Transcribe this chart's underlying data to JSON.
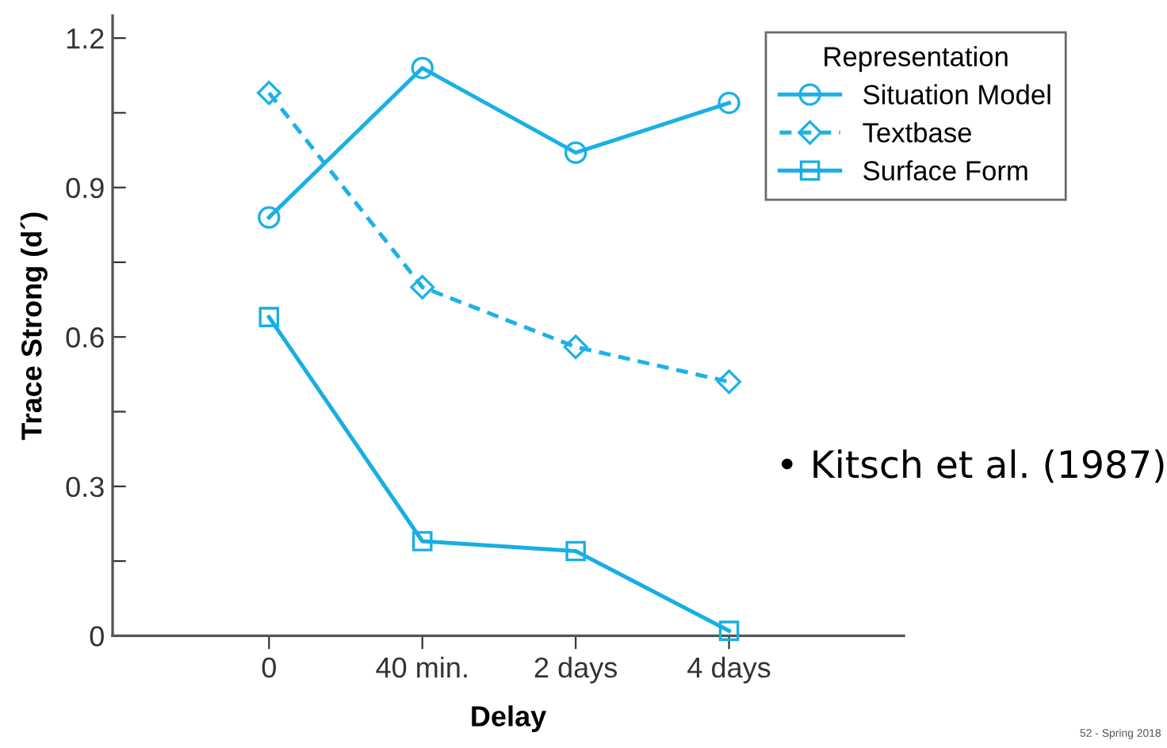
{
  "chart_data": {
    "type": "line",
    "xlabel": "Delay",
    "ylabel": "Trace Strong (d´)",
    "legend_title": "Representation",
    "categories": [
      "0",
      "40 min.",
      "2 days",
      "4 days"
    ],
    "series": [
      {
        "name": "Situation Model",
        "color": "#1ab0e6",
        "marker": "circle",
        "line_style": "solid",
        "values": [
          0.84,
          1.14,
          0.97,
          1.07
        ]
      },
      {
        "name": "Textbase",
        "color": "#1cb2e8",
        "marker": "diamond",
        "line_style": "dashed",
        "values": [
          1.09,
          0.7,
          0.58,
          0.51
        ]
      },
      {
        "name": "Surface Form",
        "color": "#18aee4",
        "marker": "square",
        "line_style": "solid",
        "values": [
          0.64,
          0.19,
          0.17,
          0.01
        ]
      }
    ],
    "ylim": [
      0,
      1.245
    ],
    "yticks": [
      0,
      {
        "value": 0.15,
        "label": null
      },
      0.3,
      {
        "value": 0.45,
        "label": null
      },
      0.6,
      {
        "value": 0.75,
        "label": null
      },
      0.9,
      {
        "value": 1.05,
        "label": null
      },
      1.2
    ],
    "grid": false,
    "legend": "top right",
    "annotations": [
      "• Kitsch et al. (1987)",
      "52 - Spring 2018"
    ]
  }
}
